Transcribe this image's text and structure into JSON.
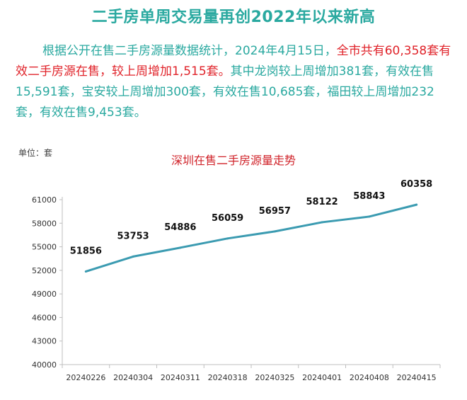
{
  "header": {
    "title": "二手房单周交易量再创2022年以来新高"
  },
  "summary": {
    "part1": "根据公开在售二手房源量数据统计，2024年4月15日，",
    "highlight": "全市共有60,358套有效二手房源在售，较上周增加1,515套。",
    "part2": "其中龙岗较上周增加381套，有效在售15,591套，宝安较上周增加300套，有效在售10,685套，福田较上周增加232套，有效在售9,453套。"
  },
  "unit": "单位：套",
  "colors": {
    "accent": "#2aa9a0",
    "highlight": "#e0232a",
    "line": "#3b9bb1"
  },
  "chart_data": {
    "type": "line",
    "title": "深圳在售二手房源量走势",
    "xlabel": "",
    "ylabel": "单位：套",
    "categories": [
      "20240226",
      "20240304",
      "20240311",
      "20240318",
      "20240325",
      "20240401",
      "20240408",
      "20240415"
    ],
    "series": [
      {
        "name": "在售二手房源量",
        "values": [
          51856,
          53753,
          54886,
          56059,
          56957,
          58122,
          58843,
          60358
        ]
      }
    ],
    "ylim": [
      40000,
      61000
    ],
    "yticks": [
      40000,
      43000,
      46000,
      49000,
      52000,
      55000,
      58000,
      61000
    ],
    "grid": false,
    "legend": "none"
  }
}
